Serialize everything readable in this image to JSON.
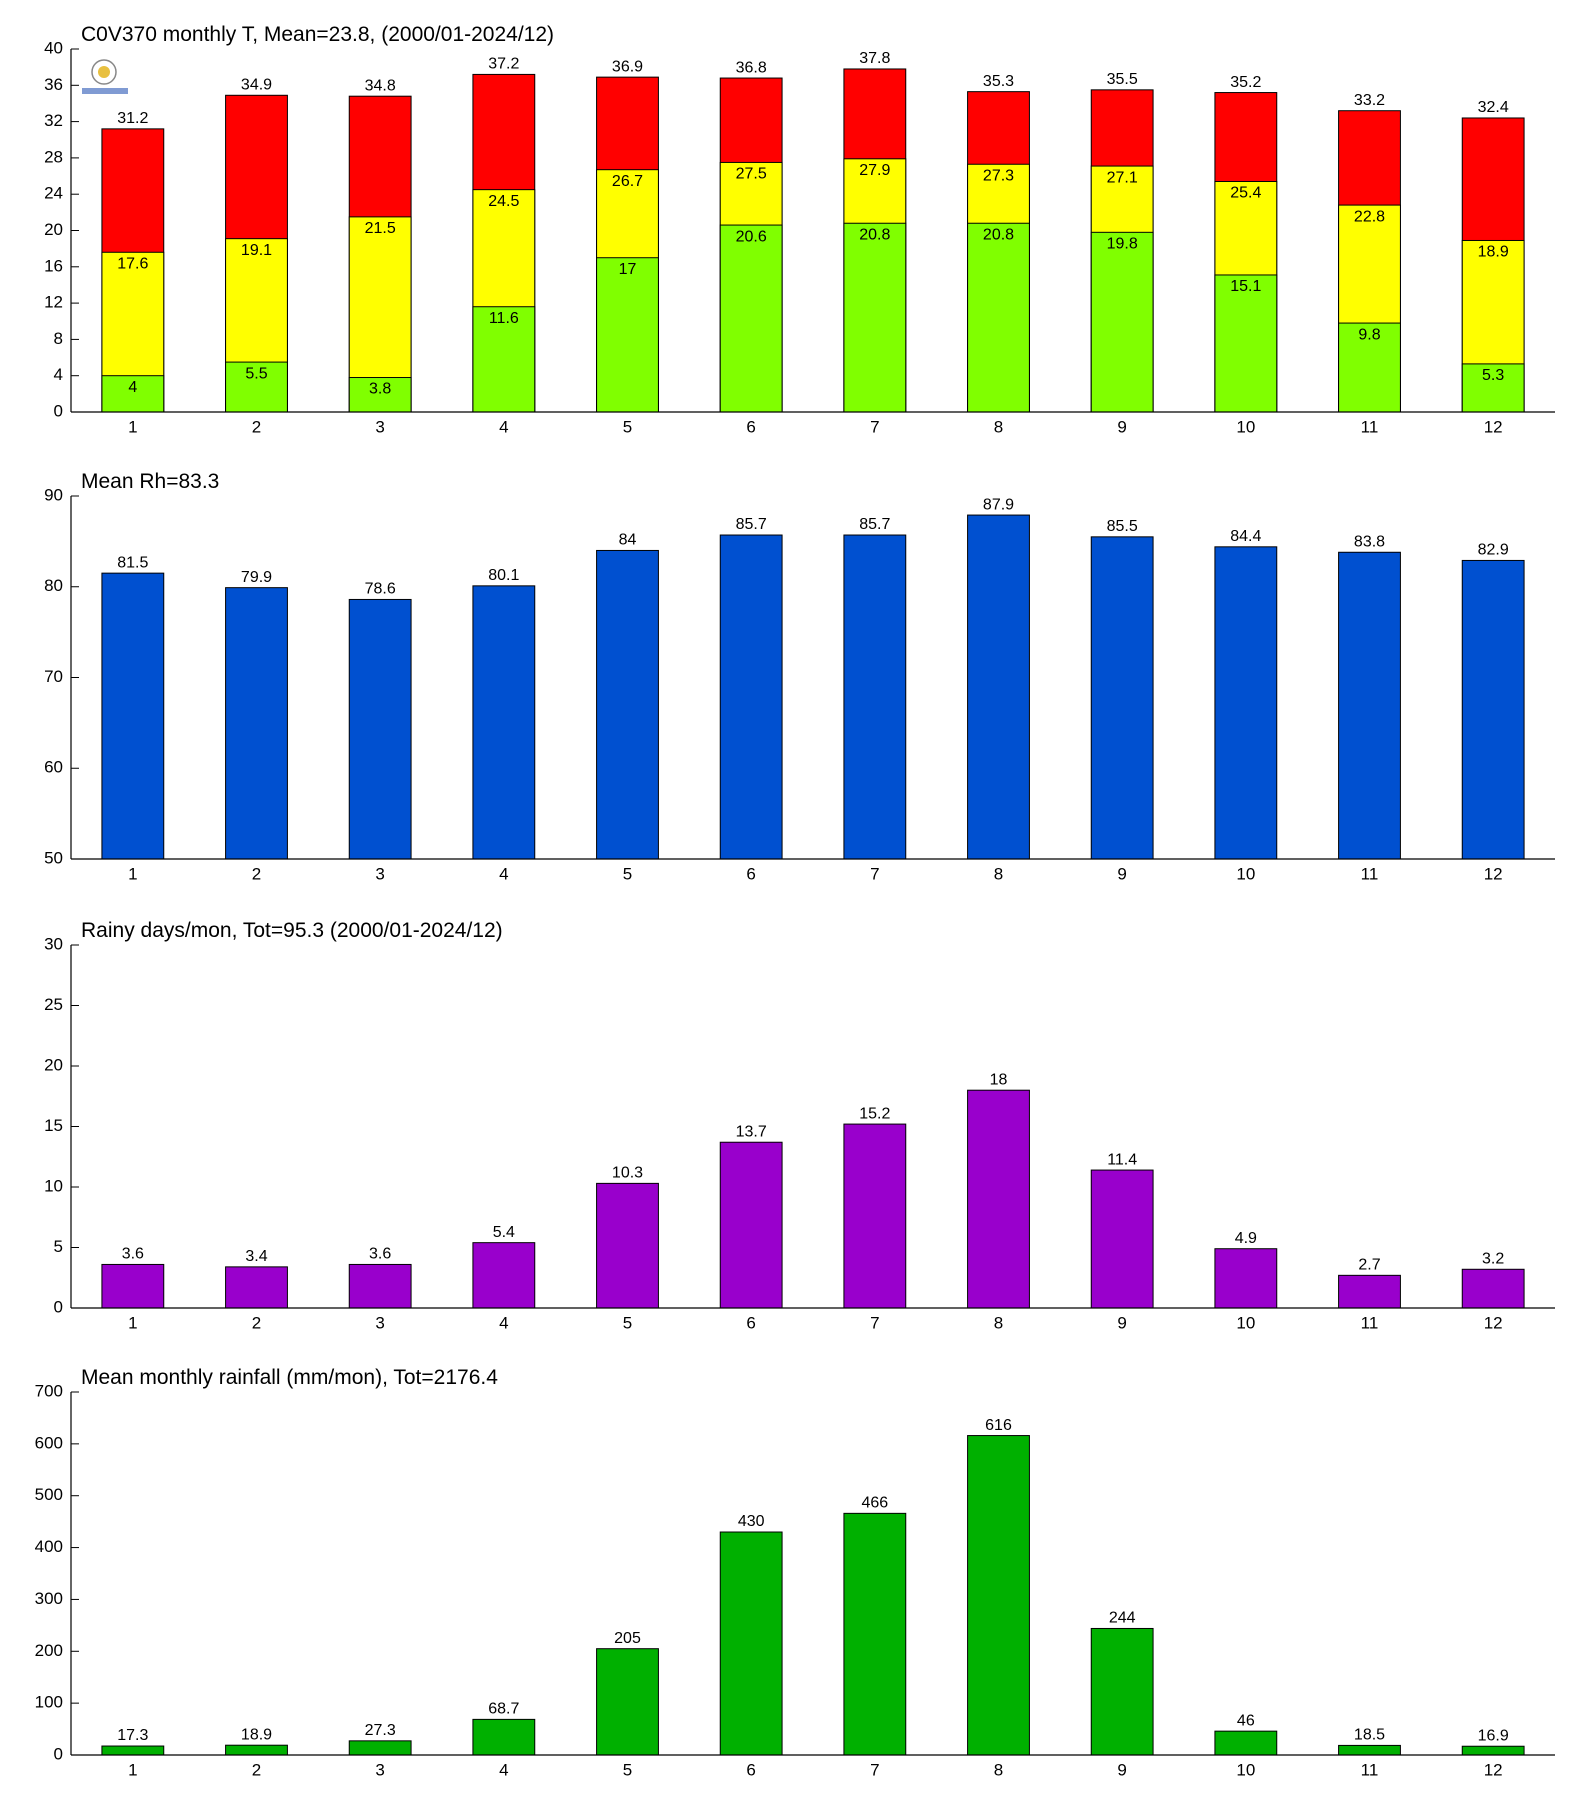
{
  "chart_data": [
    {
      "type": "bar",
      "title": "C0V370 monthly T, Mean=23.8, (2000/01-2024/12)",
      "categories": [
        "1",
        "2",
        "3",
        "4",
        "5",
        "6",
        "7",
        "8",
        "9",
        "10",
        "11",
        "12"
      ],
      "series": [
        {
          "color": "#ff0000",
          "values": [
            31.2,
            34.9,
            34.8,
            37.2,
            36.9,
            36.8,
            37.8,
            35.3,
            35.5,
            35.2,
            33.2,
            32.4
          ]
        },
        {
          "color": "#ffff00",
          "values": [
            17.6,
            19.1,
            21.5,
            24.5,
            26.7,
            27.5,
            27.9,
            27.3,
            27.1,
            25.4,
            22.8,
            18.9
          ]
        },
        {
          "color": "#80ff00",
          "values": [
            4,
            5.5,
            3.8,
            11.6,
            17,
            20.6,
            20.8,
            20.8,
            19.8,
            15.1,
            9.8,
            5.3
          ]
        }
      ],
      "ylim": [
        0,
        40
      ],
      "yticks": [
        0,
        4,
        8,
        12,
        16,
        20,
        24,
        28,
        32,
        36,
        40
      ]
    },
    {
      "type": "bar",
      "title": "Mean Rh=83.3",
      "categories": [
        "1",
        "2",
        "3",
        "4",
        "5",
        "6",
        "7",
        "8",
        "9",
        "10",
        "11",
        "12"
      ],
      "values": [
        81.5,
        79.9,
        78.6,
        80.1,
        84,
        85.7,
        85.7,
        87.9,
        85.5,
        84.4,
        83.8,
        82.9
      ],
      "color": "#0050d0",
      "ylim": [
        50,
        90
      ],
      "yticks": [
        50,
        60,
        70,
        80,
        90
      ]
    },
    {
      "type": "bar",
      "title": "Rainy days/mon, Tot=95.3 (2000/01-2024/12)",
      "categories": [
        "1",
        "2",
        "3",
        "4",
        "5",
        "6",
        "7",
        "8",
        "9",
        "10",
        "11",
        "12"
      ],
      "values": [
        3.6,
        3.4,
        3.6,
        5.4,
        10.3,
        13.7,
        15.2,
        18,
        11.4,
        4.9,
        2.7,
        3.2
      ],
      "color": "#9900cc",
      "ylim": [
        0,
        30
      ],
      "yticks": [
        0,
        5,
        10,
        15,
        20,
        25,
        30
      ]
    },
    {
      "type": "bar",
      "title": "Mean monthly rainfall (mm/mon), Tot=2176.4",
      "categories": [
        "1",
        "2",
        "3",
        "4",
        "5",
        "6",
        "7",
        "8",
        "9",
        "10",
        "11",
        "12"
      ],
      "values": [
        17.3,
        18.9,
        27.3,
        68.7,
        205,
        430,
        466,
        616,
        244,
        46,
        18.5,
        16.9
      ],
      "color": "#00b000",
      "ylim": [
        0,
        700
      ],
      "yticks": [
        0,
        100,
        200,
        300,
        400,
        500,
        600,
        700
      ]
    }
  ]
}
